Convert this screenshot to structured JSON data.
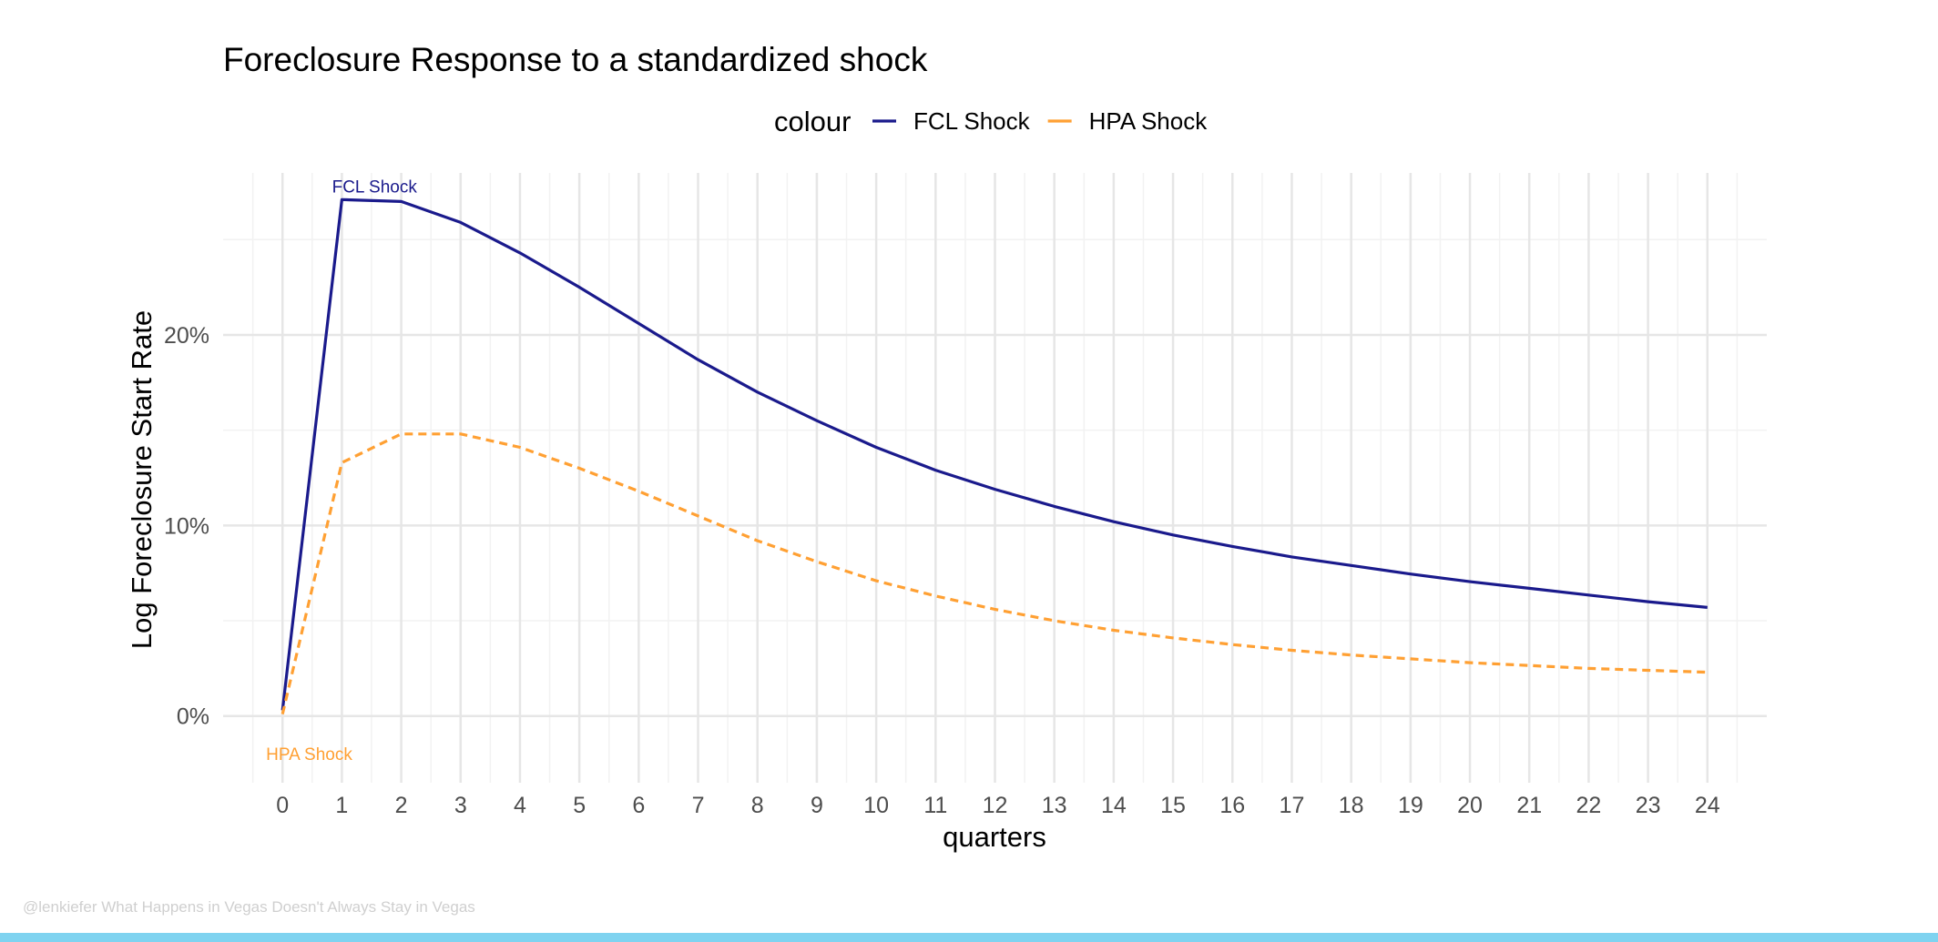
{
  "colors": {
    "fcl": "#1a1a8c",
    "hpa": "#ffa033",
    "grid_major": "#e6e6e6",
    "grid_minor": "#f2f2f2",
    "caption": "#cfcfcf",
    "bottom_bar": "#7fd3f0"
  },
  "caption": "@lenkiefer What Happens in Vegas Doesn't Always Stay in Vegas",
  "chart_data": {
    "type": "line",
    "title": "Foreclosure Response to a standardized shock",
    "xlabel": "quarters",
    "ylabel": "Log Foreclosure Start Rate",
    "xlim": [
      -1,
      25
    ],
    "ylim": [
      -3.5,
      28.5
    ],
    "x_ticks": [
      0,
      1,
      2,
      3,
      4,
      5,
      6,
      7,
      8,
      9,
      10,
      11,
      12,
      13,
      14,
      15,
      16,
      17,
      18,
      19,
      20,
      21,
      22,
      23,
      24
    ],
    "x_tick_labels": [
      "0",
      "1",
      "2",
      "3",
      "4",
      "5",
      "6",
      "7",
      "8",
      "9",
      "10",
      "11",
      "12",
      "13",
      "14",
      "15",
      "16",
      "17",
      "18",
      "19",
      "20",
      "21",
      "22",
      "23",
      "24"
    ],
    "y_ticks": [
      0,
      10,
      20
    ],
    "y_tick_labels": [
      "0%",
      "10%",
      "20%"
    ],
    "grid": true,
    "legend": {
      "title": "colour",
      "position": "top"
    },
    "x": [
      0,
      1,
      2,
      3,
      4,
      5,
      6,
      7,
      8,
      9,
      10,
      11,
      12,
      13,
      14,
      15,
      16,
      17,
      18,
      19,
      20,
      21,
      22,
      23,
      24
    ],
    "series": [
      {
        "name": "FCL Shock",
        "style": "solid",
        "values": [
          0.3,
          27.1,
          27.0,
          25.9,
          24.3,
          22.5,
          20.6,
          18.7,
          17.0,
          15.5,
          14.1,
          12.9,
          11.9,
          11.0,
          10.2,
          9.5,
          8.9,
          8.35,
          7.9,
          7.45,
          7.05,
          6.7,
          6.35,
          6.0,
          5.7
        ]
      },
      {
        "name": "HPA Shock",
        "style": "dashed",
        "values": [
          0.1,
          13.3,
          14.8,
          14.8,
          14.1,
          13.0,
          11.8,
          10.5,
          9.2,
          8.1,
          7.1,
          6.3,
          5.6,
          5.0,
          4.5,
          4.1,
          3.75,
          3.45,
          3.2,
          3.0,
          2.8,
          2.65,
          2.5,
          2.4,
          2.3
        ]
      }
    ],
    "annotations": [
      {
        "text": "FCL Shock",
        "series": "FCL Shock"
      },
      {
        "text": "HPA Shock",
        "series": "HPA Shock"
      }
    ]
  }
}
